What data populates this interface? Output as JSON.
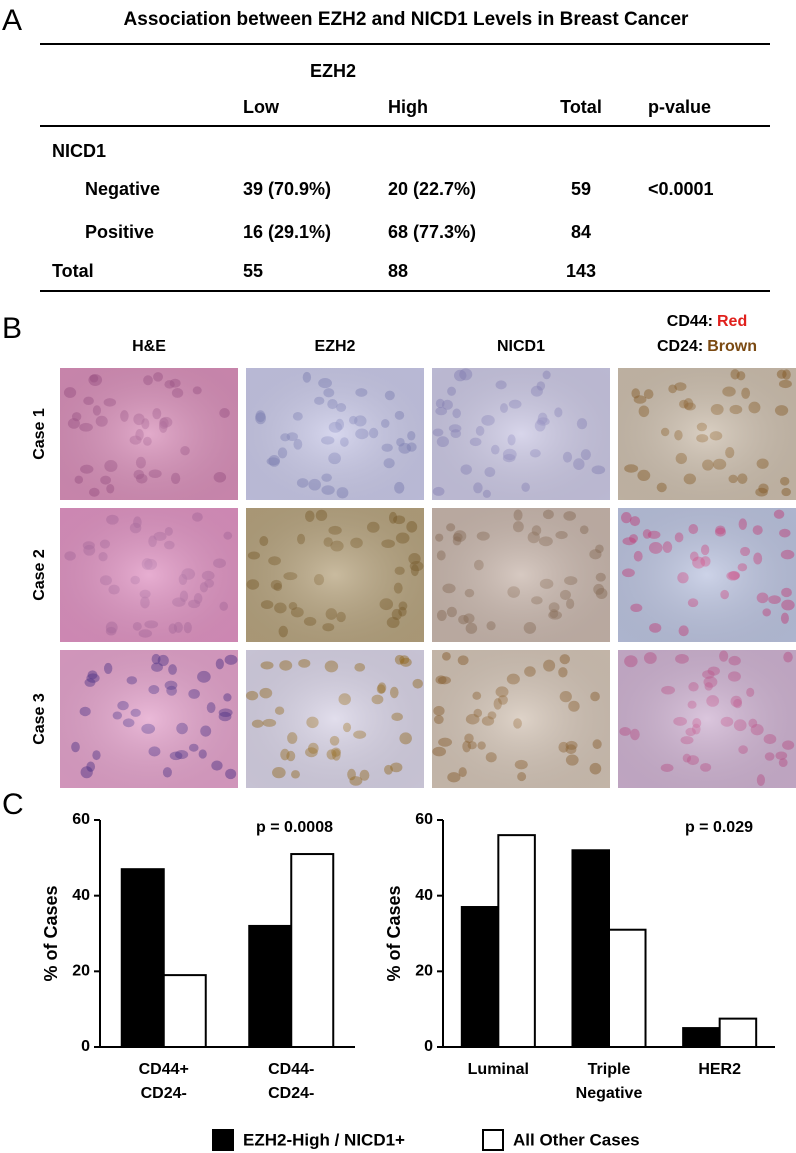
{
  "panel_labels": [
    "A",
    "B",
    "C"
  ],
  "table": {
    "title": "Association between EZH2 and NICD1 Levels in Breast Cancer",
    "column_group": "EZH2",
    "headers": [
      "Low",
      "High",
      "Total",
      "p-value"
    ],
    "row_group": "NICD1",
    "rows": [
      [
        "Negative",
        "39 (70.9%)",
        "20 (22.7%)",
        "59",
        "<0.0001"
      ],
      [
        "Positive",
        "16 (29.1%)",
        "68 (77.3%)",
        "84"
      ],
      [
        "Total",
        "55",
        "88",
        "143"
      ]
    ]
  },
  "images": {
    "columns": [
      "H&E",
      "EZH2",
      "NICD1"
    ],
    "stain_key": [
      {
        "label": "CD44:",
        "stain": "Red",
        "color": "#e0201c"
      },
      {
        "label": "CD24:",
        "stain": "Brown",
        "color": "#7b4a12"
      }
    ],
    "rows": [
      "Case 1",
      "Case 2",
      "Case 3"
    ]
  },
  "legend": [
    {
      "name": "EZH2-High / NICD1+",
      "color": "#000000"
    },
    {
      "name": "All Other Cases",
      "color": "#ffffff"
    }
  ],
  "chart_data": [
    {
      "type": "bar",
      "ylabel": "% of Cases",
      "annotation": "p = 0.0008",
      "categories": [
        [
          "CD44+",
          "CD24-"
        ],
        [
          "CD44-",
          "CD24-"
        ]
      ],
      "series": [
        {
          "color": "#000000",
          "values": [
            47,
            32
          ]
        },
        {
          "color": "#ffffff",
          "values": [
            19,
            51
          ]
        }
      ],
      "ylim": [
        0,
        60
      ],
      "yticks": [
        0,
        20,
        40,
        60
      ]
    },
    {
      "type": "bar",
      "ylabel": "% of Cases",
      "annotation": "p = 0.029",
      "categories": [
        [
          "Luminal"
        ],
        [
          "Triple",
          "Negative"
        ],
        [
          "HER2"
        ]
      ],
      "series": [
        {
          "color": "#000000",
          "values": [
            37,
            52,
            5
          ]
        },
        {
          "color": "#ffffff",
          "values": [
            56,
            31,
            7.5
          ]
        }
      ],
      "ylim": [
        0,
        60
      ],
      "yticks": [
        0,
        20,
        40,
        60
      ]
    }
  ]
}
